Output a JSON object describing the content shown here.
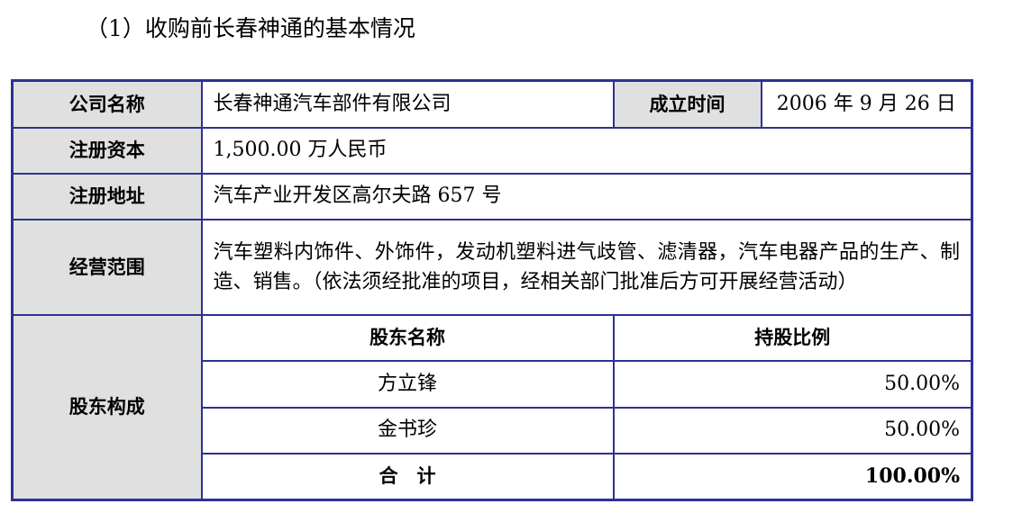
{
  "title": "（1）收购前长春神通的基本情况",
  "rows": {
    "company_label": "公司名称",
    "company": "长春神通汽车部件有限公司",
    "founded_label": "成立时间",
    "founded": "2006 年 9 月 26 日",
    "capital_label": "注册资本",
    "capital": "1,500.00 万人民币",
    "address_label": "注册地址",
    "address": "汽车产业开发区高尔夫路 657 号",
    "scope_label": "经营范围",
    "scope": "汽车塑料内饰件、外饰件，发动机塑料进气歧管、滤清器，汽车电器产品的生产、制造、销售。（依法须经批准的项目，经相关部门批准后方可开展经营活动）",
    "shareholders_label": "股东构成"
  },
  "shareholders": {
    "headers": [
      "股东名称",
      "持股比例"
    ],
    "items": [
      {
        "name": "方立锋",
        "ratio": "50.00%"
      },
      {
        "name": "金书珍",
        "ratio": "50.00%"
      }
    ],
    "total_label": "合　计",
    "total": "100.00%"
  }
}
